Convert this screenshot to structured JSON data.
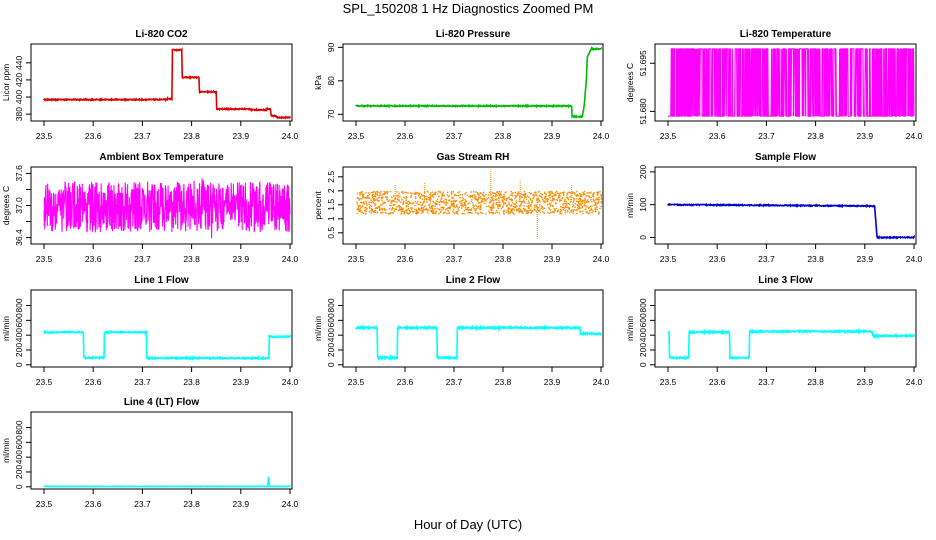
{
  "page": {
    "title": "SPL_150208  1 Hz Diagnostics Zoomed PM",
    "xlabel": "Hour of Day (UTC)"
  },
  "chart_data": [
    {
      "type": "line",
      "title": "Li-820 CO2",
      "ylabel": "Licor ppm",
      "color": "#dd0000",
      "xlim": [
        23.5,
        24.0
      ],
      "xticks": [
        "23.5",
        "23.6",
        "23.7",
        "23.8",
        "23.9",
        "24.0"
      ],
      "ylim": [
        372,
        462
      ],
      "yticks": [
        380,
        400,
        420,
        440
      ],
      "noise": 0.6,
      "series": [
        {
          "x": [
            23.5,
            23.75,
            23.751,
            23.76,
            23.761,
            23.78,
            23.781,
            23.815,
            23.816,
            23.85,
            23.851,
            23.92,
            23.921,
            23.95,
            23.955,
            23.96,
            23.962,
            23.97,
            23.975,
            24.0
          ],
          "y": [
            397,
            397,
            398,
            398,
            455,
            455,
            423,
            423,
            406,
            406,
            386,
            386,
            385,
            385,
            386,
            386,
            378,
            378,
            376,
            376
          ]
        }
      ]
    },
    {
      "type": "line",
      "title": "Li-820 Pressure",
      "ylabel": "kPa",
      "color": "#00bb00",
      "xlim": [
        23.5,
        24.0
      ],
      "xticks": [
        "23.5",
        "23.6",
        "23.7",
        "23.8",
        "23.9",
        "24.0"
      ],
      "ylim": [
        68,
        91
      ],
      "yticks": [
        70,
        80,
        90
      ],
      "noise": 0.15,
      "series": [
        {
          "x": [
            23.5,
            23.94,
            23.941,
            23.962,
            23.966,
            23.97,
            23.972,
            23.98,
            24.0
          ],
          "y": [
            72.5,
            72.5,
            69.3,
            69.3,
            73,
            80,
            87,
            89.5,
            89.5
          ]
        }
      ]
    },
    {
      "type": "line",
      "title": "Li-820 Temperature",
      "ylabel": "degrees C",
      "color": "#ff00ff",
      "xlim": [
        23.5,
        24.0
      ],
      "xticks": [
        "23.5",
        "23.6",
        "23.7",
        "23.8",
        "23.9",
        "24.0"
      ],
      "ylim": [
        51.677,
        51.701
      ],
      "yticks": [
        51.68,
        51.695
      ],
      "ytick_labels": [
        "51.680",
        "51.695"
      ],
      "digital": [
        51.6785,
        51.6995
      ]
    },
    {
      "type": "line",
      "title": "Ambient Box Temperature",
      "ylabel": "degrees C",
      "color": "#ff00ff",
      "xlim": [
        23.5,
        24.0
      ],
      "xticks": [
        "23.5",
        "23.6",
        "23.7",
        "23.8",
        "23.9",
        "24.0"
      ],
      "ylim": [
        36.28,
        37.72
      ],
      "yticks": [
        36.4,
        36.7,
        37.0,
        37.3,
        37.6
      ],
      "ytick_labels": [
        "36.4",
        "",
        "37.0",
        "",
        "37.6"
      ],
      "band": [
        36.5,
        37.45
      ]
    },
    {
      "type": "scatter",
      "title": "Gas Stream RH",
      "ylabel": "percent",
      "color": "#ff8c00",
      "xlim": [
        23.5,
        24.0
      ],
      "xticks": [
        "23.5",
        "23.6",
        "23.7",
        "23.8",
        "23.9",
        "24.0"
      ],
      "ylim": [
        0.1,
        2.85
      ],
      "yticks": [
        0.5,
        1.0,
        1.5,
        2.0,
        2.5
      ],
      "band": [
        1.2,
        2.0
      ],
      "spikes": [
        {
          "x": 23.775,
          "y": 2.75
        },
        {
          "x": 23.87,
          "y": 0.3
        },
        {
          "x": 23.835,
          "y": 2.4
        },
        {
          "x": 23.64,
          "y": 2.3
        },
        {
          "x": 23.58,
          "y": 2.25
        },
        {
          "x": 23.87,
          "y": 0.6
        },
        {
          "x": 23.94,
          "y": 2.25
        }
      ]
    },
    {
      "type": "line",
      "title": "Sample Flow",
      "ylabel": "ml/min",
      "color": "#0000cc",
      "xlim": [
        23.5,
        24.0
      ],
      "xticks": [
        "23.5",
        "23.6",
        "23.7",
        "23.8",
        "23.9",
        "24.0"
      ],
      "ylim": [
        -20,
        215
      ],
      "yticks": [
        0,
        100,
        200
      ],
      "noise": 1.5,
      "series": [
        {
          "x": [
            23.5,
            23.915,
            23.92,
            23.925,
            24.0
          ],
          "y": [
            100,
            96,
            96,
            0,
            0
          ]
        }
      ]
    },
    {
      "type": "line",
      "title": "Line 1 Flow",
      "ylabel": "ml/min",
      "color": "#00ffff",
      "xlim": [
        23.5,
        24.0
      ],
      "xticks": [
        "23.5",
        "23.6",
        "23.7",
        "23.8",
        "23.9",
        "24.0"
      ],
      "ylim": [
        -30,
        1010
      ],
      "yticks": [
        0,
        200,
        400,
        600,
        800
      ],
      "noise": 8,
      "series": [
        {
          "x": [
            23.5,
            23.58,
            23.581,
            23.622,
            23.623,
            23.708,
            23.709,
            23.957,
            23.958,
            24.0
          ],
          "y": [
            440,
            440,
            95,
            95,
            440,
            440,
            90,
            90,
            380,
            380
          ]
        }
      ]
    },
    {
      "type": "line",
      "title": "Line 2 Flow",
      "ylabel": "ml/min",
      "color": "#00ffff",
      "xlim": [
        23.5,
        24.0
      ],
      "xticks": [
        "23.5",
        "23.6",
        "23.7",
        "23.8",
        "23.9",
        "24.0"
      ],
      "ylim": [
        -30,
        1010
      ],
      "yticks": [
        0,
        200,
        400,
        600,
        800
      ],
      "noise": 10,
      "series": [
        {
          "x": [
            23.5,
            23.543,
            23.544,
            23.584,
            23.585,
            23.665,
            23.666,
            23.706,
            23.707,
            23.957,
            23.958,
            24.0
          ],
          "y": [
            500,
            500,
            95,
            95,
            500,
            500,
            95,
            95,
            500,
            500,
            420,
            420
          ]
        }
      ]
    },
    {
      "type": "line",
      "title": "Line 3 Flow",
      "ylabel": "ml/min",
      "color": "#00ffff",
      "xlim": [
        23.5,
        24.0
      ],
      "xticks": [
        "23.5",
        "23.6",
        "23.7",
        "23.8",
        "23.9",
        "24.0"
      ],
      "ylim": [
        -30,
        1010
      ],
      "yticks": [
        0,
        200,
        400,
        600,
        800
      ],
      "noise": 9,
      "series": [
        {
          "x": [
            23.5,
            23.502,
            23.503,
            23.542,
            23.543,
            23.625,
            23.626,
            23.665,
            23.666,
            23.915,
            23.916,
            24.0
          ],
          "y": [
            440,
            440,
            95,
            95,
            440,
            440,
            95,
            95,
            450,
            450,
            390,
            390
          ]
        }
      ]
    },
    {
      "type": "line",
      "title": "Line 4 (LT) Flow",
      "ylabel": "ml/min",
      "color": "#00ffff",
      "xlim": [
        23.5,
        24.0
      ],
      "xticks": [
        "23.5",
        "23.6",
        "23.7",
        "23.8",
        "23.9",
        "24.0"
      ],
      "ylim": [
        -30,
        1010
      ],
      "yticks": [
        0,
        200,
        400,
        600,
        800
      ],
      "noise": 2,
      "series": [
        {
          "x": [
            23.5,
            23.955,
            23.956,
            23.957,
            23.958,
            24.0
          ],
          "y": [
            5,
            5,
            120,
            120,
            5,
            5
          ]
        }
      ]
    }
  ]
}
